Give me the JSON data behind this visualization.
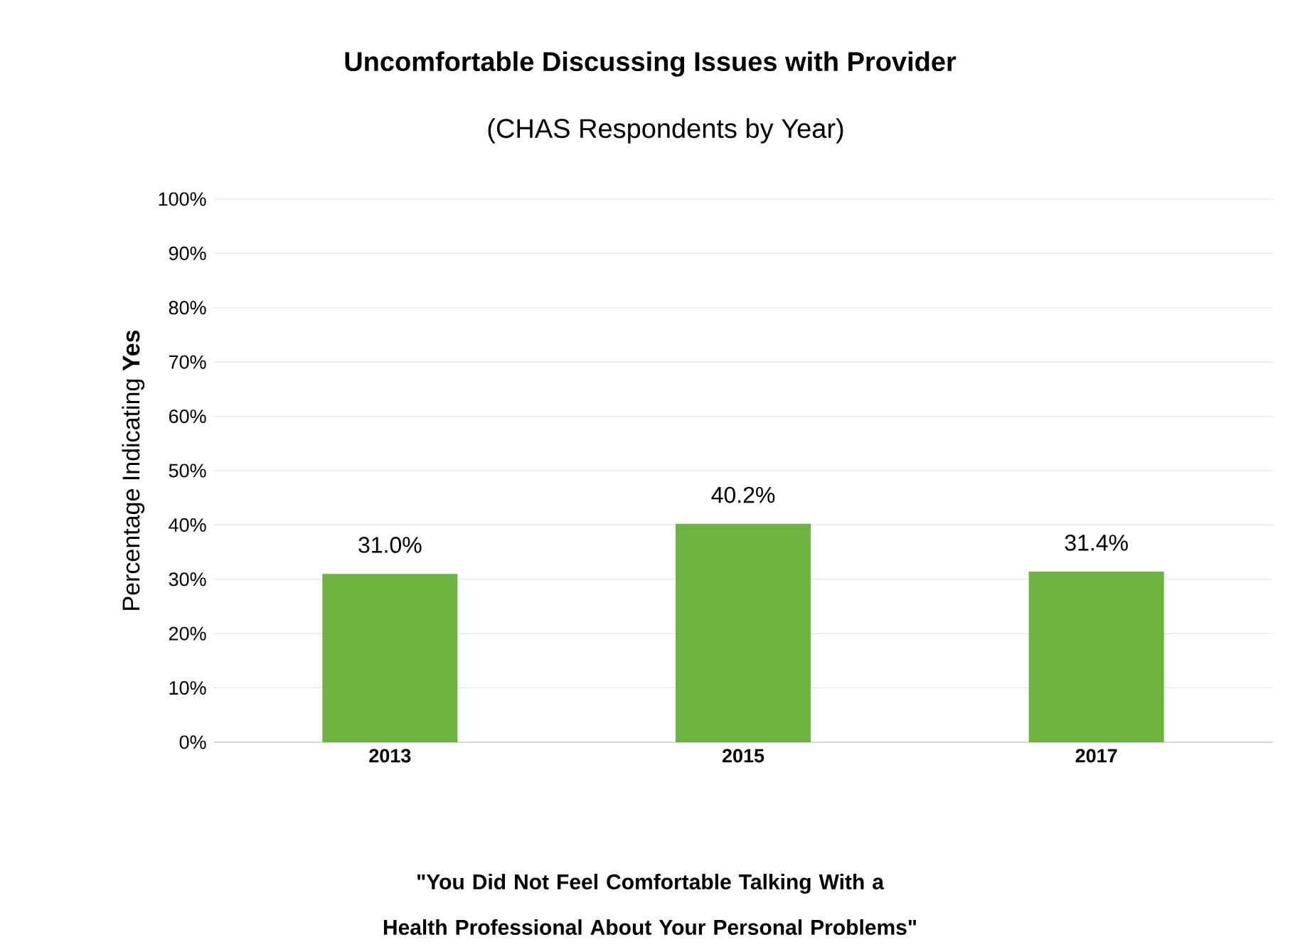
{
  "chart_data": {
    "type": "bar",
    "title": "Uncomfortable Discussing Issues with Provider",
    "subtitle": "(CHAS Respondents by Year)",
    "annotations": [
      "\"You Did Not Feel Comfortable Talking With a Health Professional About Your Personal Problems\""
    ],
    "ylabel": "Percentage Indicating **Yes**",
    "categories": [
      "2013",
      "2015",
      "2017"
    ],
    "values": [
      31.0,
      40.2,
      31.4
    ],
    "value_labels": [
      "31.0%",
      "40.2%",
      "31.4%"
    ],
    "color": "#6db33f",
    "ylim": [
      0,
      100
    ],
    "yticks": [
      {
        "value": 0,
        "label": "0%"
      },
      {
        "value": 10,
        "label": "10%"
      },
      {
        "value": 20,
        "label": "20%"
      },
      {
        "value": 30,
        "label": "30%"
      },
      {
        "value": 40,
        "label": "40%"
      },
      {
        "value": 50,
        "label": "50%"
      },
      {
        "value": 60,
        "label": "60%"
      },
      {
        "value": 70,
        "label": "70%"
      },
      {
        "value": 80,
        "label": "80%"
      },
      {
        "value": 90,
        "label": "90%"
      },
      {
        "value": 100,
        "label": "100%"
      }
    ],
    "grid": "y"
  }
}
